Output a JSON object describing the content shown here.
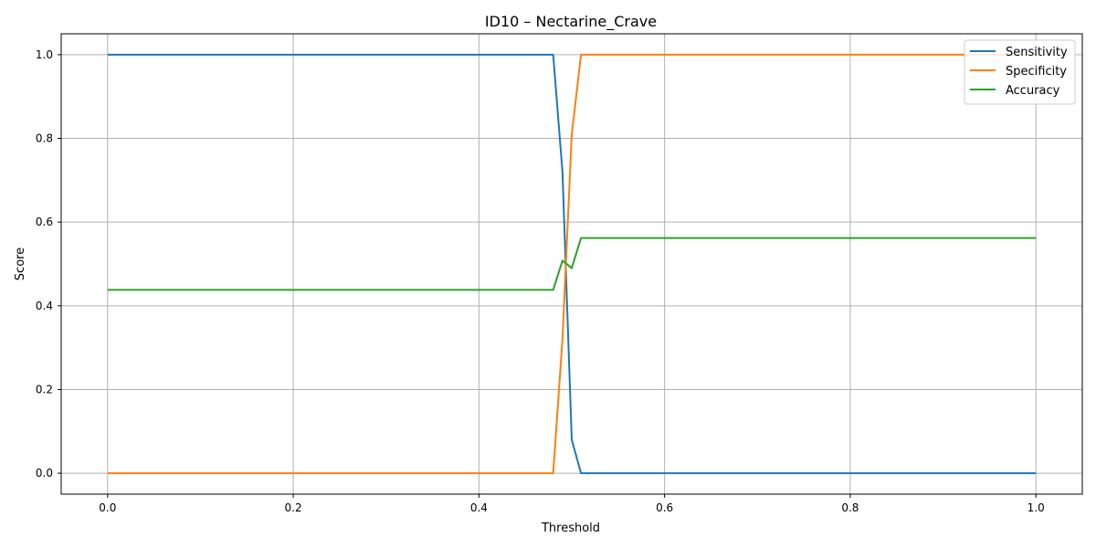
{
  "chart_data": {
    "type": "line",
    "title": "ID10 – Nectarine_Crave",
    "xlabel": "Threshold",
    "ylabel": "Score",
    "xlim": [
      -0.05,
      1.05
    ],
    "ylim": [
      -0.05,
      1.05
    ],
    "x_ticks": [
      0.0,
      0.2,
      0.4,
      0.6,
      0.8,
      1.0
    ],
    "x_tick_labels": [
      "0.0",
      "0.2",
      "0.4",
      "0.6",
      "0.8",
      "1.0"
    ],
    "y_ticks": [
      0.0,
      0.2,
      0.4,
      0.6,
      0.8,
      1.0
    ],
    "y_tick_labels": [
      "0.0",
      "0.2",
      "0.4",
      "0.6",
      "0.8",
      "1.0"
    ],
    "grid": true,
    "legend_position": "top-right",
    "series": [
      {
        "name": "Sensitivity",
        "color": "#1f77b4",
        "x": [
          0.0,
          0.48,
          0.49,
          0.5,
          0.51,
          1.0
        ],
        "y": [
          1.0,
          1.0,
          0.72,
          0.08,
          0.0,
          0.0
        ]
      },
      {
        "name": "Specificity",
        "color": "#ff7f0e",
        "x": [
          0.0,
          0.48,
          0.49,
          0.5,
          0.51,
          1.0
        ],
        "y": [
          0.0,
          0.0,
          0.32,
          0.81,
          1.0,
          1.0
        ]
      },
      {
        "name": "Accuracy",
        "color": "#2ca02c",
        "x": [
          0.0,
          0.48,
          0.49,
          0.5,
          0.51,
          1.0
        ],
        "y": [
          0.438,
          0.438,
          0.508,
          0.49,
          0.562,
          0.562
        ]
      }
    ]
  }
}
